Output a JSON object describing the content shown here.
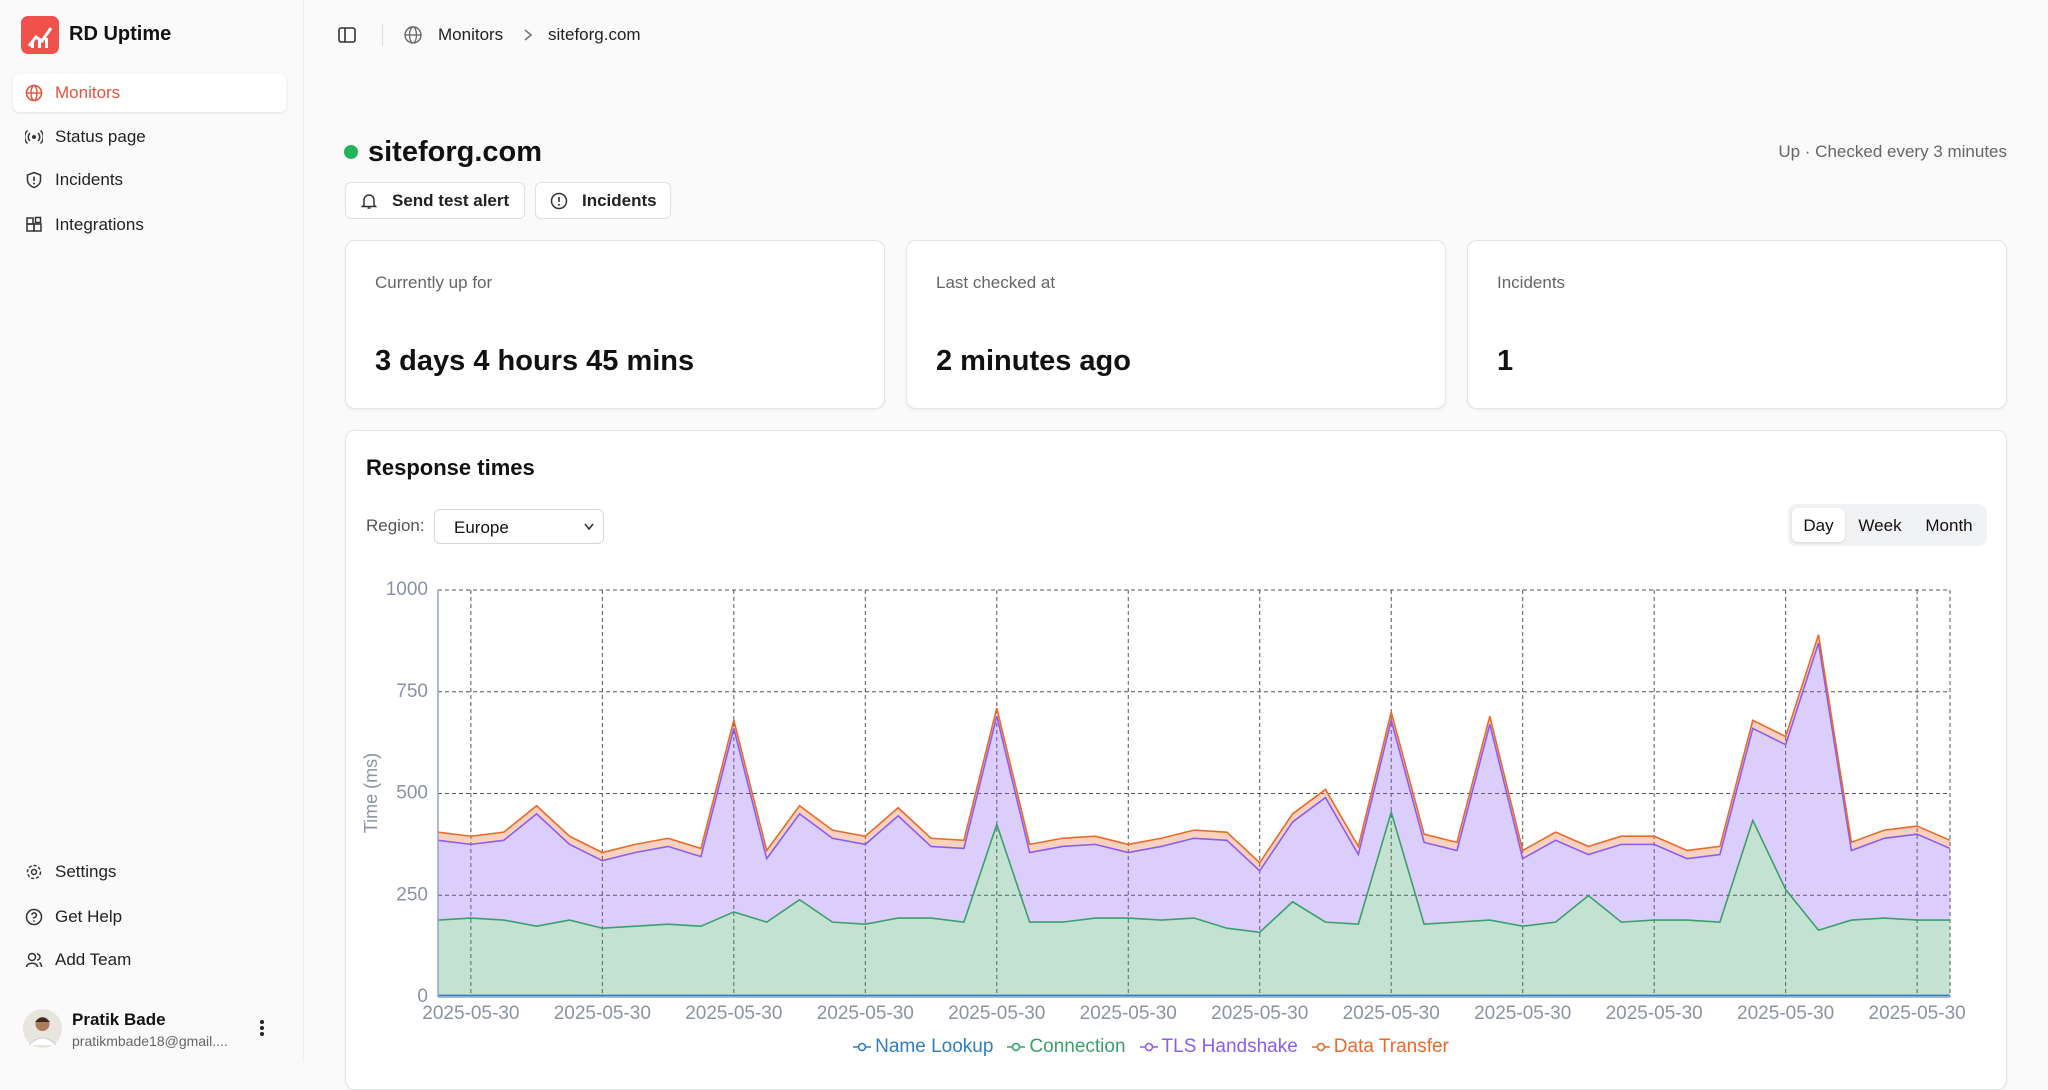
{
  "sidebar": {
    "brand": "RD Uptime",
    "nav": [
      "Monitors",
      "Status page",
      "Incidents",
      "Integrations"
    ],
    "footer_nav": [
      "Settings",
      "Get Help",
      "Add Team"
    ],
    "user": {
      "name": "Pratik Bade",
      "email": "pratikmbade18@gmail...."
    }
  },
  "breadcrumb": [
    "Monitors",
    "siteforg.com"
  ],
  "monitor": {
    "name": "siteforg.com",
    "status": "Up · Checked every 3 minutes",
    "actions": [
      "Send test alert",
      "Incidents"
    ]
  },
  "stats": [
    {
      "label": "Currently up for",
      "value": "3 days 4 hours 45 mins"
    },
    {
      "label": "Last checked at",
      "value": "2 minutes ago"
    },
    {
      "label": "Incidents",
      "value": "1"
    }
  ],
  "panel": {
    "title": "Response times",
    "region_label": "Region:",
    "region": "Europe",
    "ranges": [
      "Day",
      "Week",
      "Month"
    ]
  },
  "chart_data": {
    "type": "area",
    "stacked": true,
    "ylabel": "Time (ms)",
    "grid": true,
    "legend": "bottom",
    "ylim": [
      0,
      1000
    ],
    "yticks": [
      0,
      250,
      500,
      750,
      1000
    ],
    "categories": [
      null,
      "2025-05-30",
      null,
      null,
      null,
      "2025-05-30",
      null,
      null,
      null,
      "2025-05-30",
      null,
      null,
      null,
      "2025-05-30",
      null,
      null,
      null,
      "2025-05-30",
      null,
      null,
      null,
      "2025-05-30",
      null,
      null,
      null,
      "2025-05-30",
      null,
      null,
      null,
      "2025-05-30",
      null,
      null,
      null,
      "2025-05-30",
      null,
      null,
      null,
      "2025-05-30",
      null,
      null,
      null,
      "2025-05-30",
      null,
      null,
      null,
      "2025-05-30",
      null
    ],
    "series": [
      {
        "name": "Name Lookup",
        "color": "#2f7fc1",
        "values": [
          4,
          4,
          4,
          4,
          4,
          4,
          4,
          4,
          4,
          4,
          4,
          4,
          4,
          4,
          4,
          4,
          4,
          4,
          4,
          4,
          4,
          4,
          4,
          4,
          4,
          4,
          4,
          4,
          4,
          4,
          4,
          4,
          4,
          4,
          4,
          4,
          4,
          4,
          4,
          4,
          4,
          4,
          4,
          4,
          4,
          4,
          4
        ]
      },
      {
        "name": "Connection",
        "color": "#3aa06a",
        "values": [
          185,
          190,
          185,
          170,
          185,
          165,
          170,
          175,
          170,
          205,
          180,
          235,
          180,
          175,
          190,
          190,
          180,
          420,
          180,
          180,
          190,
          190,
          185,
          190,
          165,
          155,
          230,
          180,
          175,
          450,
          175,
          180,
          185,
          170,
          180,
          245,
          180,
          185,
          185,
          180,
          430,
          260,
          160,
          185,
          190,
          185,
          185
        ]
      },
      {
        "name": "TLS Handshake",
        "color": "#8b5cf6",
        "values": [
          196,
          181,
          196,
          276,
          186,
          166,
          181,
          191,
          171,
          451,
          156,
          211,
          206,
          196,
          251,
          176,
          181,
          266,
          171,
          186,
          181,
          161,
          181,
          196,
          216,
          151,
          196,
          306,
          171,
          226,
          201,
          176,
          481,
          166,
          201,
          101,
          191,
          186,
          151,
          166,
          226,
          356,
          706,
          171,
          196,
          211,
          176
        ]
      },
      {
        "name": "Data Transfer",
        "color": "#ea6a2a",
        "values": [
          20,
          20,
          20,
          20,
          20,
          20,
          20,
          20,
          20,
          20,
          20,
          20,
          20,
          20,
          20,
          20,
          20,
          20,
          20,
          20,
          20,
          20,
          20,
          20,
          20,
          20,
          20,
          20,
          20,
          20,
          20,
          20,
          20,
          20,
          20,
          20,
          20,
          20,
          20,
          20,
          20,
          20,
          20,
          20,
          20,
          20,
          20
        ]
      }
    ]
  }
}
